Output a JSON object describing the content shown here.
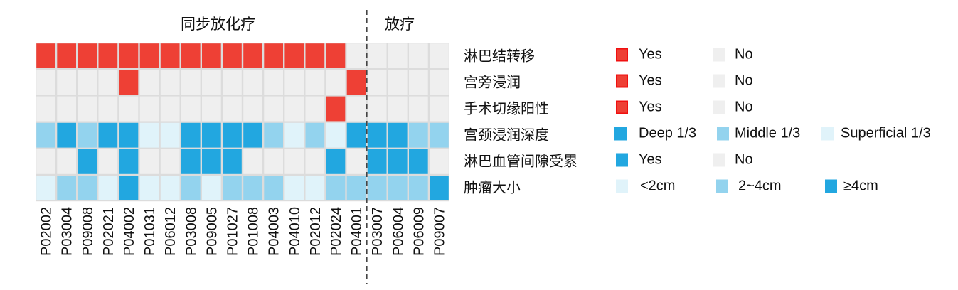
{
  "chart_data": {
    "type": "heatmap",
    "groups": [
      {
        "label": "同步放化疗",
        "columns": 16
      },
      {
        "label": "放疗",
        "columns": 4
      }
    ],
    "samples": [
      "P02002",
      "P03004",
      "P09008",
      "P02021",
      "P04002",
      "P01031",
      "P06012",
      "P03008",
      "P09005",
      "P01027",
      "P01008",
      "P04003",
      "P04010",
      "P02012",
      "P02024",
      "P04001",
      "P03007",
      "P06004",
      "P06009",
      "P09007"
    ],
    "rows": [
      {
        "label": "淋巴结转移",
        "legend": [
          {
            "key": "Yes",
            "label": "Yes",
            "color": "#ee4035"
          },
          {
            "key": "No",
            "label": "No",
            "color": "#efefef"
          }
        ],
        "values": [
          "Yes",
          "Yes",
          "Yes",
          "Yes",
          "Yes",
          "Yes",
          "Yes",
          "Yes",
          "Yes",
          "Yes",
          "Yes",
          "Yes",
          "Yes",
          "Yes",
          "Yes",
          "No",
          "No",
          "No",
          "No",
          "No"
        ]
      },
      {
        "label": "宫旁浸润",
        "legend": [
          {
            "key": "Yes",
            "label": "Yes",
            "color": "#ee4035"
          },
          {
            "key": "No",
            "label": "No",
            "color": "#efefef"
          }
        ],
        "values": [
          "No",
          "No",
          "No",
          "No",
          "Yes",
          "No",
          "No",
          "No",
          "No",
          "No",
          "No",
          "No",
          "No",
          "No",
          "No",
          "Yes",
          "No",
          "No",
          "No",
          "No"
        ]
      },
      {
        "label": "手术切缘阳性",
        "legend": [
          {
            "key": "Yes",
            "label": "Yes",
            "color": "#ee4035"
          },
          {
            "key": "No",
            "label": "No",
            "color": "#efefef"
          }
        ],
        "values": [
          "No",
          "No",
          "No",
          "No",
          "No",
          "No",
          "No",
          "No",
          "No",
          "No",
          "No",
          "No",
          "No",
          "No",
          "Yes",
          "No",
          "No",
          "No",
          "No",
          "No"
        ]
      },
      {
        "label": "宫颈浸润深度",
        "legend": [
          {
            "key": "Deep",
            "label": "Deep 1/3",
            "color": "#22a7e0"
          },
          {
            "key": "Middle",
            "label": "Middle 1/3",
            "color": "#93d3ee"
          },
          {
            "key": "Superficial",
            "label": "Superficial 1/3",
            "color": "#e0f3fa"
          }
        ],
        "values": [
          "Middle",
          "Deep",
          "Middle",
          "Deep",
          "Deep",
          "Superficial",
          "Superficial",
          "Deep",
          "Deep",
          "Deep",
          "Deep",
          "Middle",
          "Superficial",
          "Middle",
          "Superficial",
          "Deep",
          "Deep",
          "Deep",
          "Middle",
          "Middle"
        ]
      },
      {
        "label": "淋巴血管间隙受累",
        "legend": [
          {
            "key": "Yes",
            "label": "Yes",
            "color": "#22a7e0"
          },
          {
            "key": "No",
            "label": "No",
            "color": "#efefef"
          }
        ],
        "values": [
          "No",
          "No",
          "Yes",
          "No",
          "Yes",
          "No",
          "No",
          "Yes",
          "Yes",
          "Yes",
          "No",
          "No",
          "No",
          "No",
          "Yes",
          "No",
          "Yes",
          "Yes",
          "Yes",
          "No"
        ]
      },
      {
        "label": "肿瘤大小",
        "legend": [
          {
            "key": "<2",
            "label": "<2cm",
            "color": "#e0f3fa"
          },
          {
            "key": "2-4",
            "label": "2~4cm",
            "color": "#93d3ee"
          },
          {
            "key": ">=4",
            "label": "≥4cm",
            "color": "#22a7e0"
          }
        ],
        "values": [
          "<2",
          "2-4",
          "2-4",
          "<2",
          ">=4",
          "<2",
          "<2",
          "2-4",
          "<2",
          "2-4",
          "2-4",
          "2-4",
          "<2",
          "<2",
          "2-4",
          "2-4",
          "2-4",
          "2-4",
          "2-4",
          ">=4"
        ]
      }
    ]
  }
}
